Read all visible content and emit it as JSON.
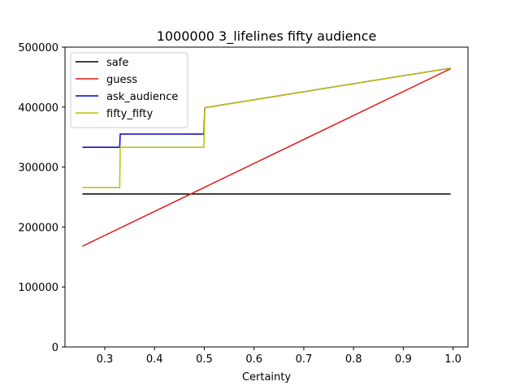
{
  "chart_data": {
    "type": "line",
    "title": "1000000 3_lifelines fifty audience",
    "xlabel": "Certainty",
    "ylabel": "",
    "xlim": [
      0.22,
      1.03
    ],
    "ylim": [
      0,
      500000
    ],
    "xticks": [
      0.3,
      0.4,
      0.5,
      0.6,
      0.7,
      0.8,
      0.9,
      1.0
    ],
    "xtick_labels": [
      "0.3",
      "0.4",
      "0.5",
      "0.6",
      "0.7",
      "0.8",
      "0.9",
      "1.0"
    ],
    "yticks": [
      0,
      100000,
      200000,
      300000,
      400000,
      500000
    ],
    "ytick_labels": [
      "0",
      "100000",
      "200000",
      "300000",
      "400000",
      "500000"
    ],
    "grid": false,
    "legend": "top-left",
    "series": [
      {
        "name": "safe",
        "color": "#000000",
        "x": [
          0.255,
          0.995
        ],
        "y": [
          255000,
          255000
        ]
      },
      {
        "name": "guess",
        "color": "#e31a1c",
        "x": [
          0.255,
          0.995
        ],
        "y": [
          168000,
          464000
        ]
      },
      {
        "name": "ask_audience",
        "color": "#0000cc",
        "x": [
          0.255,
          0.33,
          0.331,
          0.499,
          0.501,
          0.995
        ],
        "y": [
          333000,
          333000,
          355000,
          355000,
          399000,
          465000
        ]
      },
      {
        "name": "fifty_fifty",
        "color": "#bfbf00",
        "x": [
          0.255,
          0.33,
          0.331,
          0.499,
          0.501,
          0.995
        ],
        "y": [
          266000,
          266000,
          333000,
          333000,
          399000,
          465000
        ]
      }
    ]
  }
}
